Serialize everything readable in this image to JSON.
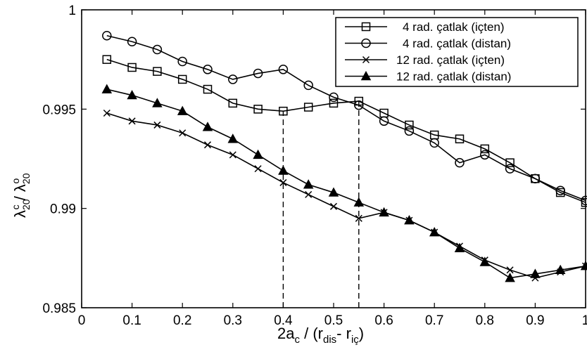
{
  "chart_data": {
    "type": "line",
    "title": "",
    "xlabel": {
      "main": "2a",
      "sub_c": "c",
      "mid": " / (r",
      "sub_dis": "dis",
      "dash": "- r",
      "sub_ic": "iç",
      "close": ")"
    },
    "ylabel": {
      "lambda1": "λ",
      "sub1": "20",
      "sup1": "c",
      "slash": " / ",
      "lambda2": "λ",
      "sub2": "20",
      "sup2": "o"
    },
    "xlim": [
      0,
      1
    ],
    "ylim": [
      0.985,
      1
    ],
    "x_ticks": [
      "0",
      "0.1",
      "0.2",
      "0.3",
      "0.4",
      "0.5",
      "0.6",
      "0.7",
      "0.8",
      "0.9",
      "1"
    ],
    "y_ticks": [
      "0.985",
      "0.99",
      "0.995",
      "1"
    ],
    "x_tick_values": [
      0,
      0.1,
      0.2,
      0.3,
      0.4,
      0.5,
      0.6,
      0.7,
      0.8,
      0.9,
      1.0
    ],
    "y_tick_values": [
      0.985,
      0.99,
      0.995,
      1.0
    ],
    "grid": false,
    "legend_position": "top-right",
    "x": [
      0.05,
      0.1,
      0.15,
      0.2,
      0.25,
      0.3,
      0.35,
      0.4,
      0.45,
      0.5,
      0.55,
      0.6,
      0.65,
      0.7,
      0.75,
      0.8,
      0.85,
      0.9,
      0.95,
      1.0
    ],
    "series": [
      {
        "name": "4 rad. çatlak (içten)",
        "marker": "square",
        "values": [
          0.9975,
          0.9971,
          0.9969,
          0.9965,
          0.996,
          0.9953,
          0.995,
          0.9949,
          0.9951,
          0.9953,
          0.9954,
          0.9948,
          0.9942,
          0.9937,
          0.9935,
          0.993,
          0.9923,
          0.9915,
          0.9908,
          0.9903
        ]
      },
      {
        "name": "4 rad. çatlak (distan)",
        "marker": "circle",
        "values": [
          0.9987,
          0.9984,
          0.998,
          0.9974,
          0.997,
          0.9965,
          0.9968,
          0.997,
          0.9962,
          0.9956,
          0.9952,
          0.9944,
          0.9939,
          0.9933,
          0.9923,
          0.9927,
          0.992,
          0.9915,
          0.9909,
          0.9904
        ]
      },
      {
        "name": "12 rad. çatlak (içten)",
        "marker": "x",
        "values": [
          0.9948,
          0.9944,
          0.9942,
          0.9938,
          0.9932,
          0.9927,
          0.992,
          0.9913,
          0.9907,
          0.9901,
          0.9895,
          0.9898,
          0.9894,
          0.9888,
          0.9881,
          0.9874,
          0.9869,
          0.9865,
          0.9868,
          0.9871
        ]
      },
      {
        "name": "12 rad. çatlak (distan)",
        "marker": "triangle",
        "values": [
          0.996,
          0.9957,
          0.9953,
          0.9949,
          0.9941,
          0.9935,
          0.9927,
          0.9919,
          0.9912,
          0.9908,
          0.9903,
          0.9898,
          0.9894,
          0.9888,
          0.988,
          0.9873,
          0.9865,
          0.9867,
          0.9869,
          0.9871
        ]
      }
    ],
    "reference_lines": [
      {
        "x": 0.4,
        "y_top": 0.9949
      },
      {
        "x": 0.55,
        "y_top": 0.9954
      }
    ]
  }
}
